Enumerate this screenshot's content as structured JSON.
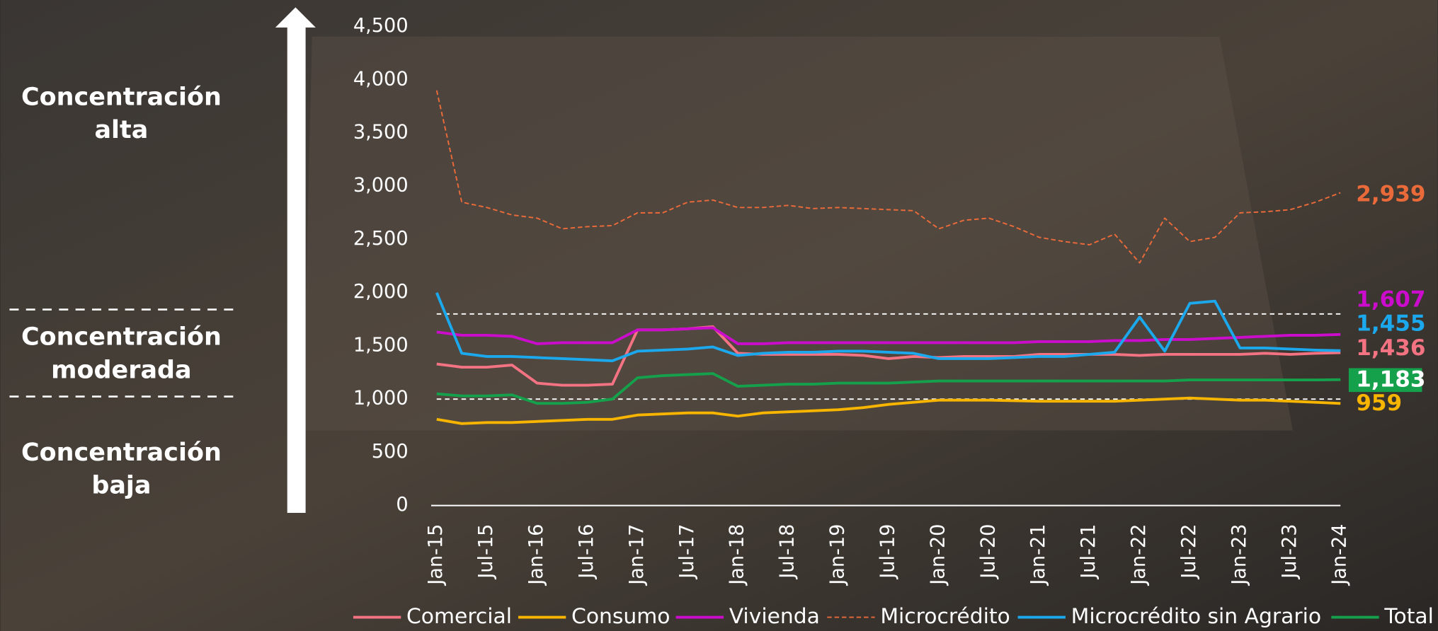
{
  "chart_data": {
    "type": "line",
    "annotations": [
      "Concentración alta",
      "Concentración moderada",
      "Concentración baja"
    ],
    "thresholds": [
      1800,
      1000
    ],
    "categories": [
      "Jan-15",
      null,
      "Jul-15",
      null,
      "Jan-16",
      null,
      "Jul-16",
      null,
      "Jan-17",
      null,
      "Jul-17",
      null,
      "Jan-18",
      null,
      "Jul-18",
      null,
      "Jan-19",
      null,
      "Jul-19",
      null,
      "Jan-20",
      null,
      "Jul-20",
      null,
      "Jan-21",
      null,
      "Jul-21",
      null,
      "Jan-22",
      null,
      "Jul-22",
      null,
      "Jan-23",
      null,
      "Jul-23",
      null,
      "Jan-24"
    ],
    "ylim": [
      0,
      4500
    ],
    "yticks": [
      0,
      500,
      {
        "value": 1000,
        "label": "1,000"
      },
      {
        "value": 1500,
        "label": "1,500"
      },
      {
        "value": 2000,
        "label": "2,000"
      },
      {
        "value": 2500,
        "label": "2,500"
      },
      {
        "value": 3000,
        "label": "3,000"
      },
      {
        "value": 3500,
        "label": "3,500"
      },
      {
        "value": 4000,
        "label": "4,000"
      },
      {
        "value": 4500,
        "label": "4,500"
      }
    ],
    "series": [
      {
        "name": "Comercial",
        "color": "#f47383",
        "dashed": false,
        "values": [
          1330,
          1300,
          1300,
          1320,
          1150,
          1130,
          1130,
          1140,
          1650,
          1650,
          1660,
          1680,
          1430,
          1420,
          1420,
          1420,
          1420,
          1410,
          1380,
          1400,
          1390,
          1400,
          1400,
          1400,
          1420,
          1420,
          1420,
          1420,
          1410,
          1420,
          1420,
          1420,
          1420,
          1430,
          1420,
          1430,
          1436
        ],
        "value_labels": [
          null,
          null,
          null,
          null,
          null,
          null,
          null,
          null,
          null,
          null,
          null,
          null,
          null,
          null,
          null,
          null,
          null,
          null,
          null,
          null,
          null,
          null,
          null,
          null,
          null,
          null,
          null,
          null,
          null,
          null,
          null,
          null,
          null,
          null,
          null,
          null,
          "1,436"
        ]
      },
      {
        "name": "Consumo",
        "color": "#f7b500",
        "dashed": false,
        "values": [
          810,
          770,
          780,
          780,
          790,
          800,
          810,
          810,
          850,
          860,
          870,
          870,
          840,
          870,
          880,
          890,
          900,
          920,
          950,
          970,
          990,
          990,
          990,
          985,
          980,
          980,
          980,
          980,
          990,
          1000,
          1010,
          1000,
          990,
          990,
          980,
          970,
          959
        ],
        "value_labels": [
          null,
          null,
          null,
          null,
          null,
          null,
          null,
          null,
          null,
          null,
          null,
          null,
          null,
          null,
          null,
          null,
          null,
          null,
          null,
          null,
          null,
          null,
          null,
          null,
          null,
          null,
          null,
          null,
          null,
          null,
          null,
          null,
          null,
          null,
          null,
          null,
          "959"
        ]
      },
      {
        "name": "Vivienda",
        "color": "#cc0ccc",
        "dashed": false,
        "values": [
          1630,
          1600,
          1600,
          1590,
          1520,
          1530,
          1530,
          1530,
          1650,
          1650,
          1660,
          1670,
          1520,
          1520,
          1530,
          1530,
          1530,
          1530,
          1530,
          1530,
          1530,
          1530,
          1530,
          1530,
          1540,
          1540,
          1540,
          1550,
          1550,
          1560,
          1560,
          1570,
          1580,
          1590,
          1600,
          1600,
          1607
        ],
        "value_labels": [
          null,
          null,
          null,
          null,
          null,
          null,
          null,
          null,
          null,
          null,
          null,
          null,
          null,
          null,
          null,
          null,
          null,
          null,
          null,
          null,
          null,
          null,
          null,
          null,
          null,
          null,
          null,
          null,
          null,
          null,
          null,
          null,
          null,
          null,
          null,
          null,
          "1,607"
        ]
      },
      {
        "name": "Microcrédito",
        "color": "#ea6a3a",
        "dashed": true,
        "values": [
          3900,
          2850,
          2800,
          2730,
          2700,
          2600,
          2620,
          2630,
          2750,
          2750,
          2850,
          2870,
          2800,
          2800,
          2820,
          2790,
          2800,
          2790,
          2780,
          2770,
          2600,
          2680,
          2700,
          2620,
          2520,
          2480,
          2450,
          2550,
          2280,
          2700,
          2480,
          2520,
          2750,
          2760,
          2780,
          2850,
          2939
        ],
        "value_labels": [
          null,
          null,
          null,
          null,
          null,
          null,
          null,
          null,
          null,
          null,
          null,
          null,
          null,
          null,
          null,
          null,
          null,
          null,
          null,
          null,
          null,
          null,
          null,
          null,
          null,
          null,
          null,
          null,
          null,
          null,
          null,
          null,
          null,
          null,
          null,
          null,
          "2,939"
        ]
      },
      {
        "name": "Microcrédito sin Agrario",
        "color": "#1ca8ec",
        "dashed": false,
        "values": [
          2000,
          1430,
          1400,
          1400,
          1390,
          1380,
          1370,
          1360,
          1450,
          1460,
          1470,
          1490,
          1410,
          1430,
          1440,
          1440,
          1450,
          1450,
          1440,
          1430,
          1380,
          1380,
          1380,
          1390,
          1400,
          1400,
          1420,
          1440,
          1770,
          1450,
          1900,
          1920,
          1480,
          1480,
          1470,
          1460,
          1455
        ],
        "value_labels": [
          null,
          null,
          null,
          null,
          null,
          null,
          null,
          null,
          null,
          null,
          null,
          null,
          null,
          null,
          null,
          null,
          null,
          null,
          null,
          null,
          null,
          null,
          null,
          null,
          null,
          null,
          null,
          null,
          null,
          null,
          null,
          null,
          null,
          null,
          null,
          null,
          "1,455"
        ]
      },
      {
        "name": "Total",
        "color": "#15a04c",
        "dashed": false,
        "values": [
          1050,
          1030,
          1030,
          1040,
          960,
          960,
          970,
          1000,
          1200,
          1220,
          1230,
          1240,
          1120,
          1130,
          1140,
          1140,
          1150,
          1150,
          1150,
          1160,
          1170,
          1170,
          1170,
          1170,
          1170,
          1170,
          1170,
          1170,
          1170,
          1170,
          1180,
          1180,
          1180,
          1180,
          1180,
          1180,
          1183
        ],
        "value_labels": [
          null,
          null,
          null,
          null,
          null,
          null,
          null,
          null,
          null,
          null,
          null,
          null,
          null,
          null,
          null,
          null,
          null,
          null,
          null,
          null,
          null,
          null,
          null,
          null,
          null,
          null,
          null,
          null,
          null,
          null,
          null,
          null,
          null,
          null,
          null,
          null,
          "1,183"
        ],
        "label_box": true
      }
    ]
  }
}
